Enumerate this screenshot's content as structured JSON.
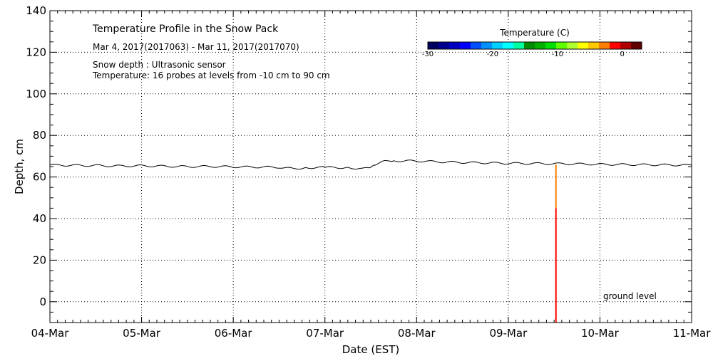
{
  "chart_data": {
    "type": "line",
    "title": "Temperature Profile in the Snow Pack",
    "subtitle": "Mar  4, 2017(2017063) - Mar 11, 2017(2017070)",
    "notes": [
      "Snow depth : Ultrasonic sensor",
      "Temperature: 16 probes at levels from -10 cm to 90 cm"
    ],
    "ground_label": "ground level",
    "xlabel": "Date (EST)",
    "ylabel": "Depth, cm",
    "x_ticks": [
      "04-Mar",
      "05-Mar",
      "06-Mar",
      "07-Mar",
      "08-Mar",
      "09-Mar",
      "10-Mar",
      "11-Mar"
    ],
    "xlim": [
      0,
      7
    ],
    "ylim": [
      -10,
      140
    ],
    "y_ticks": [
      0,
      20,
      40,
      60,
      80,
      100,
      120,
      140
    ],
    "grid": true,
    "series": [
      {
        "name": "Snow depth",
        "color": "#000000",
        "x": [
          0.0,
          0.25,
          0.5,
          0.75,
          1.0,
          1.25,
          1.5,
          1.75,
          2.0,
          2.25,
          2.5,
          2.65,
          2.8,
          3.0,
          3.25,
          3.4,
          3.5,
          3.55,
          3.65,
          3.75,
          4.0,
          4.25,
          4.5,
          4.75,
          5.0,
          5.25,
          5.5,
          5.75,
          6.0,
          6.25,
          6.5,
          6.75,
          7.0
        ],
        "y": [
          65.8,
          65.6,
          65.5,
          65.3,
          65.4,
          65.2,
          65.0,
          65.1,
          64.9,
          64.8,
          64.7,
          64.0,
          64.5,
          64.6,
          64.5,
          64.0,
          64.2,
          66.0,
          67.5,
          67.8,
          67.7,
          67.3,
          67.0,
          66.8,
          66.6,
          66.5,
          66.4,
          66.3,
          66.1,
          66.0,
          65.9,
          65.8,
          65.7
        ]
      }
    ],
    "probe_column": {
      "x": 5.52,
      "segments": [
        {
          "from": -10,
          "to": 45,
          "color": "#ff0000"
        },
        {
          "from": 45,
          "to": 66,
          "color": "#ff8000"
        }
      ]
    },
    "colorbar": {
      "title": "Temperature (C)",
      "range": [
        -30,
        3
      ],
      "ticks": [
        {
          "value": -30,
          "label": "-30"
        },
        {
          "value": -20,
          "label": "-20"
        },
        {
          "value": -10,
          "label": "-10"
        },
        {
          "value": 0,
          "label": "0"
        }
      ],
      "colors": [
        "#000060",
        "#00008c",
        "#0000c0",
        "#0000ff",
        "#0050ff",
        "#0090ff",
        "#00d0ff",
        "#00ffff",
        "#00ffa0",
        "#008c00",
        "#00b000",
        "#00e000",
        "#60ff00",
        "#b0ff30",
        "#ffff00",
        "#ffc800",
        "#ff8000",
        "#ff0000",
        "#b00000",
        "#600000"
      ]
    }
  }
}
